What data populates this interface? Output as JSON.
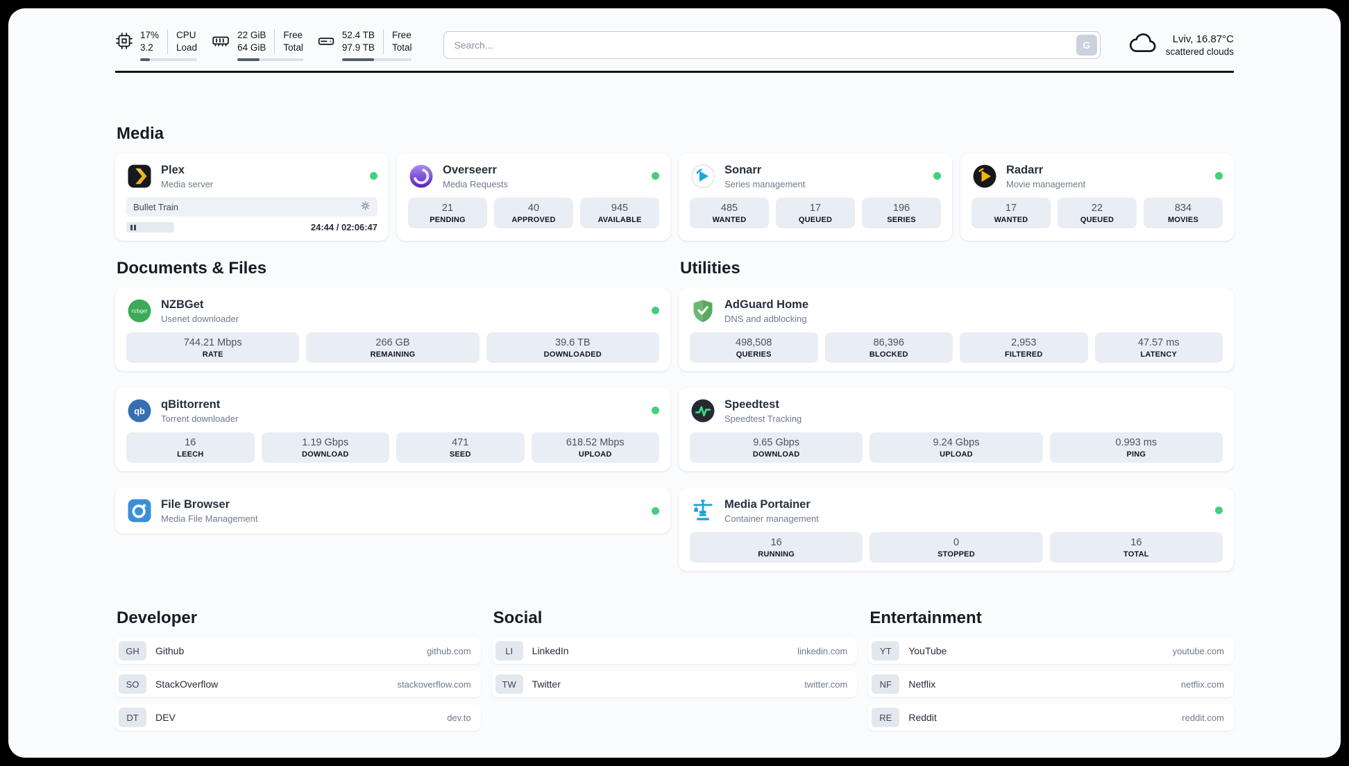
{
  "topbar": {
    "cpu": {
      "usage": "17%",
      "load": "3.2",
      "col2_top": "CPU",
      "col2_bottom": "Load",
      "bar_percent": 17
    },
    "ram": {
      "free": "22 GiB",
      "total": "64 GiB",
      "col2_top": "Free",
      "col2_bottom": "Total",
      "bar_percent": 34
    },
    "disk": {
      "free": "52.4 TB",
      "total": "97.9 TB",
      "col2_top": "Free",
      "col2_bottom": "Total",
      "bar_percent": 46
    },
    "search": {
      "placeholder": "Search...",
      "button_label": "G"
    },
    "weather": {
      "location": "Lviv, 16.87°C",
      "condition": "scattered clouds"
    }
  },
  "sections": {
    "media": "Media",
    "documents": "Documents & Files",
    "utilities": "Utilities",
    "developer": "Developer",
    "social": "Social",
    "entertainment": "Entertainment"
  },
  "media": {
    "plex": {
      "name": "Plex",
      "subtitle": "Media server",
      "now_playing": "Bullet Train",
      "time": "24:44 / 02:06:47"
    },
    "overseerr": {
      "name": "Overseerr",
      "subtitle": "Media Requests",
      "stats": [
        {
          "value": "21",
          "label": "PENDING"
        },
        {
          "value": "40",
          "label": "APPROVED"
        },
        {
          "value": "945",
          "label": "AVAILABLE"
        }
      ]
    },
    "sonarr": {
      "name": "Sonarr",
      "subtitle": "Series management",
      "stats": [
        {
          "value": "485",
          "label": "WANTED"
        },
        {
          "value": "17",
          "label": "QUEUED"
        },
        {
          "value": "196",
          "label": "SERIES"
        }
      ]
    },
    "radarr": {
      "name": "Radarr",
      "subtitle": "Movie management",
      "stats": [
        {
          "value": "17",
          "label": "WANTED"
        },
        {
          "value": "22",
          "label": "QUEUED"
        },
        {
          "value": "834",
          "label": "MOVIES"
        }
      ]
    }
  },
  "documents": {
    "nzbget": {
      "name": "NZBGet",
      "subtitle": "Usenet downloader",
      "icon_text": "nzbget",
      "stats": [
        {
          "value": "744.21 Mbps",
          "label": "RATE"
        },
        {
          "value": "266 GB",
          "label": "REMAINING"
        },
        {
          "value": "39.6 TB",
          "label": "DOWNLOADED"
        }
      ]
    },
    "qbittorrent": {
      "name": "qBittorrent",
      "subtitle": "Torrent downloader",
      "icon_text": "qb",
      "stats": [
        {
          "value": "16",
          "label": "LEECH"
        },
        {
          "value": "1.19 Gbps",
          "label": "DOWNLOAD"
        },
        {
          "value": "471",
          "label": "SEED"
        },
        {
          "value": "618.52 Mbps",
          "label": "UPLOAD"
        }
      ]
    },
    "filebrowser": {
      "name": "File Browser",
      "subtitle": "Media File Management"
    }
  },
  "utilities": {
    "adguard": {
      "name": "AdGuard Home",
      "subtitle": "DNS and adblocking",
      "stats": [
        {
          "value": "498,508",
          "label": "QUERIES"
        },
        {
          "value": "86,396",
          "label": "BLOCKED"
        },
        {
          "value": "2,953",
          "label": "FILTERED"
        },
        {
          "value": "47.57 ms",
          "label": "LATENCY"
        }
      ]
    },
    "speedtest": {
      "name": "Speedtest",
      "subtitle": "Speedtest Tracking",
      "stats": [
        {
          "value": "9.65 Gbps",
          "label": "DOWNLOAD"
        },
        {
          "value": "9.24 Gbps",
          "label": "UPLOAD"
        },
        {
          "value": "0.993 ms",
          "label": "PING"
        }
      ]
    },
    "portainer": {
      "name": "Media Portainer",
      "subtitle": "Container management",
      "stats": [
        {
          "value": "16",
          "label": "RUNNING"
        },
        {
          "value": "0",
          "label": "STOPPED"
        },
        {
          "value": "16",
          "label": "TOTAL"
        }
      ]
    }
  },
  "bookmarks": {
    "developer": [
      {
        "abbr": "GH",
        "name": "Github",
        "url": "github.com"
      },
      {
        "abbr": "SO",
        "name": "StackOverflow",
        "url": "stackoverflow.com"
      },
      {
        "abbr": "DT",
        "name": "DEV",
        "url": "dev.to"
      }
    ],
    "social": [
      {
        "abbr": "LI",
        "name": "LinkedIn",
        "url": "linkedin.com"
      },
      {
        "abbr": "TW",
        "name": "Twitter",
        "url": "twitter.com"
      }
    ],
    "entertainment": [
      {
        "abbr": "YT",
        "name": "YouTube",
        "url": "youtube.com"
      },
      {
        "abbr": "NF",
        "name": "Netflix",
        "url": "netflix.com"
      },
      {
        "abbr": "RE",
        "name": "Reddit",
        "url": "reddit.com"
      }
    ]
  }
}
